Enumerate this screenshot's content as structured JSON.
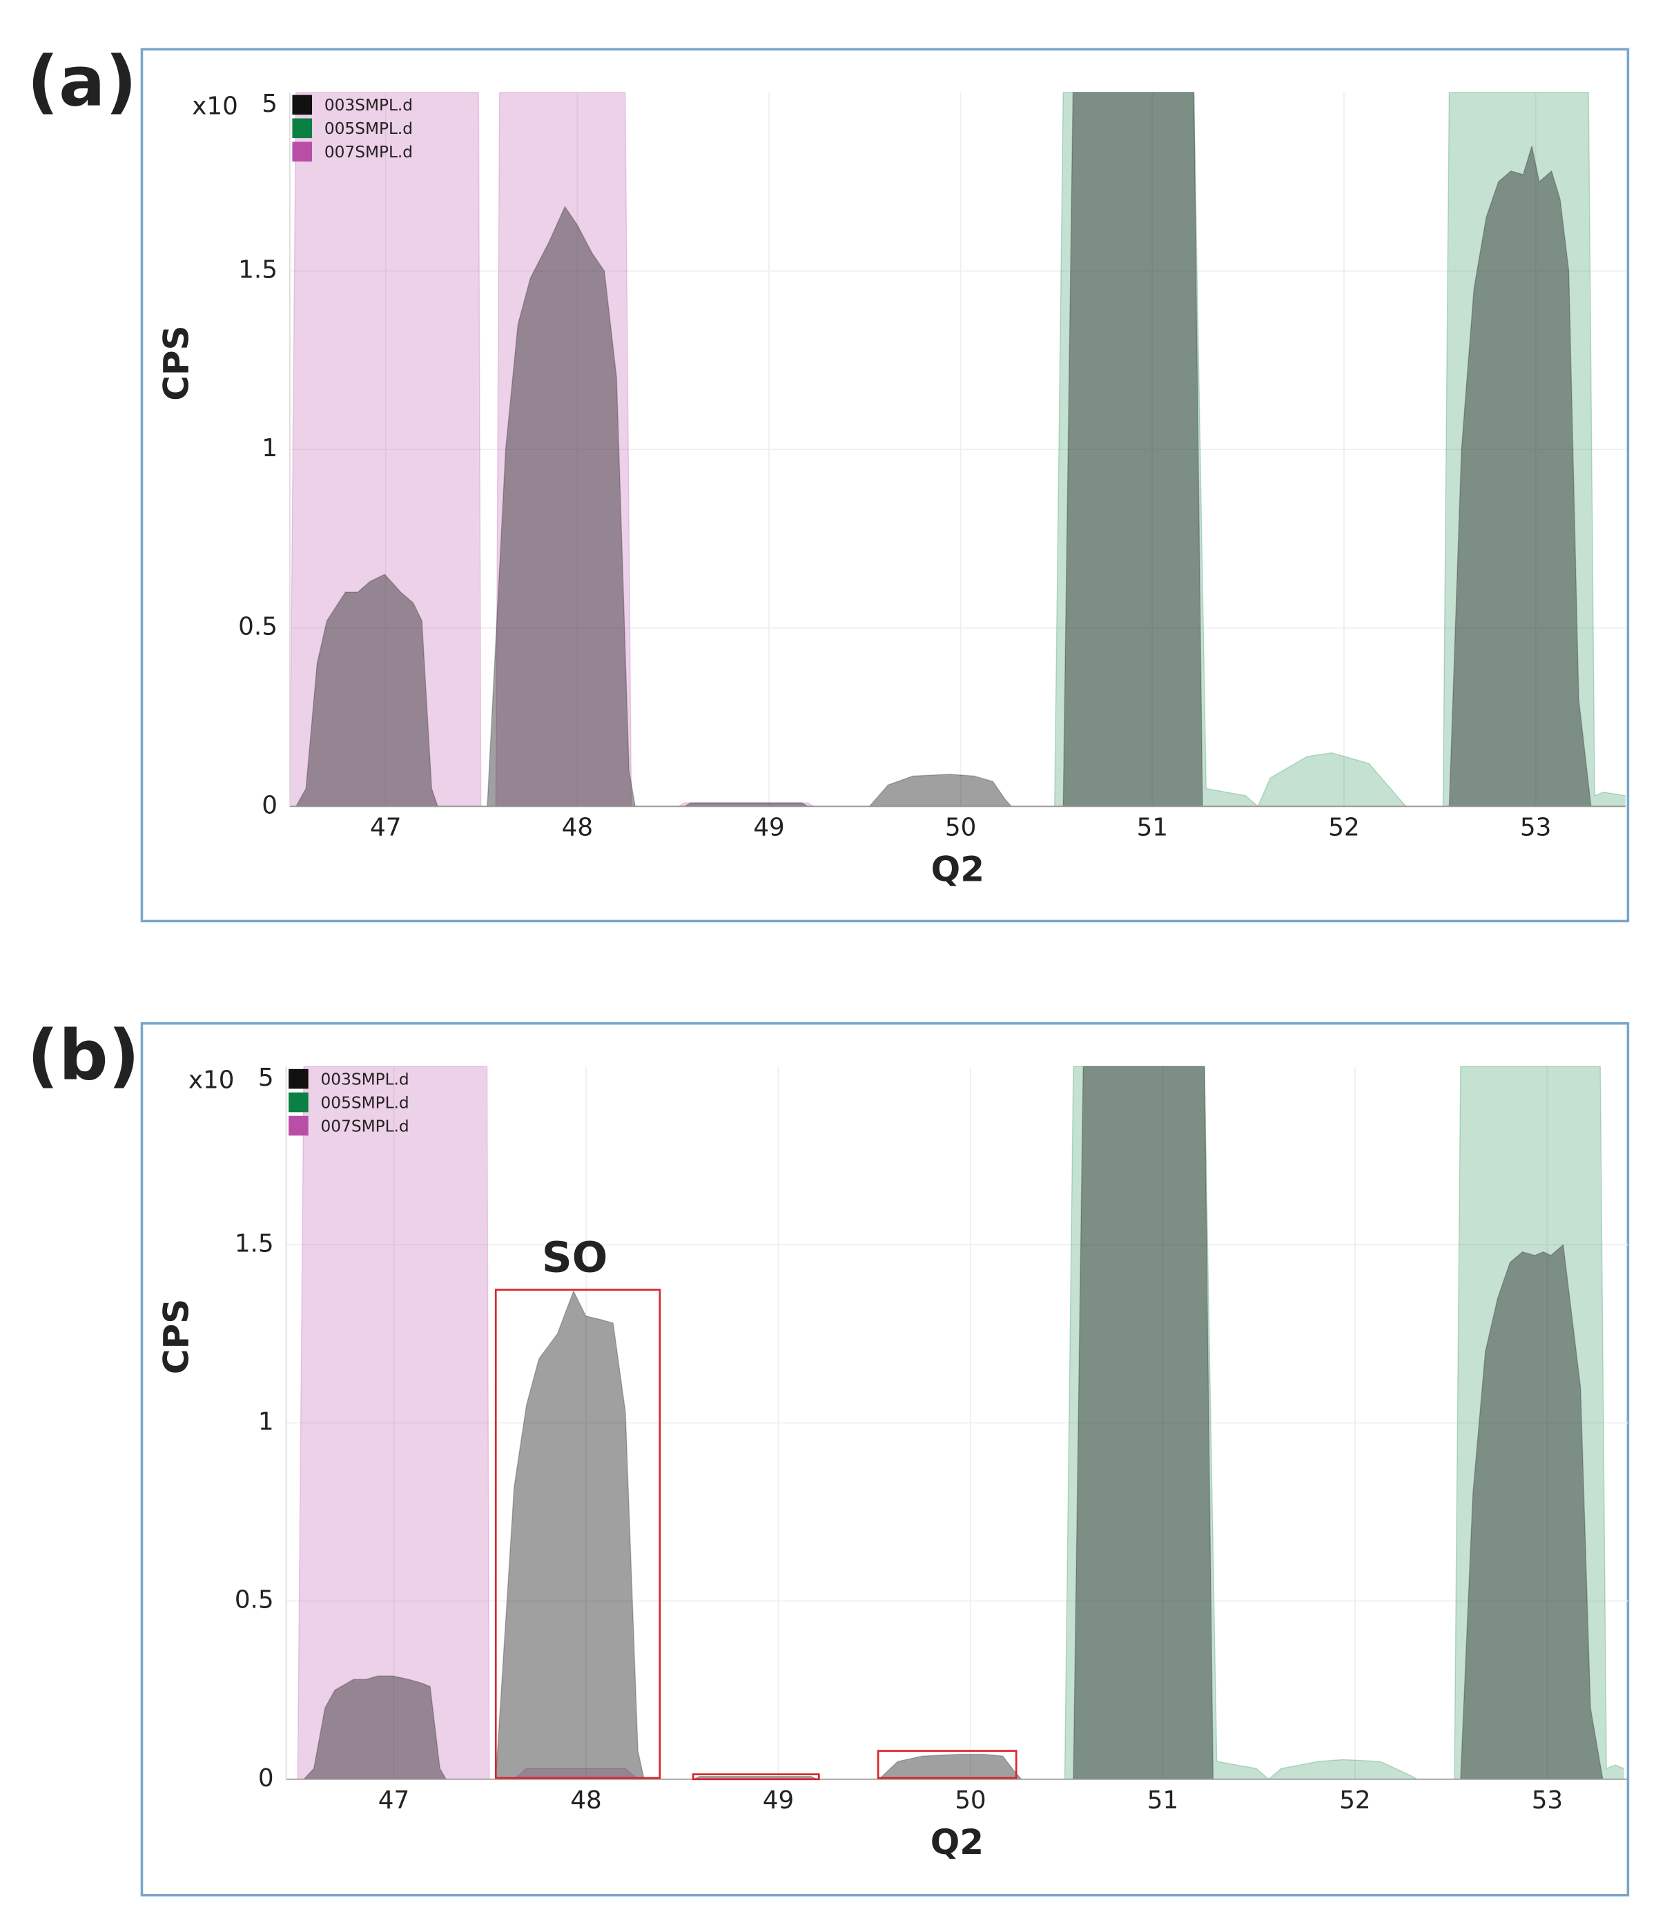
{
  "chart_data": [
    {
      "type": "area",
      "panel_label": "(a)",
      "x_label": "Q2",
      "y_label": "CPS",
      "y_multiplier": "x10",
      "y_exponent": "5",
      "xlim": [
        46.5,
        53.469
      ],
      "ylim": [
        0,
        2
      ],
      "xticks": [
        47,
        48,
        49,
        50,
        51,
        52,
        53
      ],
      "yticks": [
        0,
        0.5,
        1,
        1.5
      ],
      "grid": true,
      "series": [
        {
          "name": "007SMPL.d",
          "color": "#b84ea6",
          "x": [
            46.5,
            46.532,
            47.485,
            47.497,
            47.575,
            47.594,
            48.25,
            48.282,
            48.527,
            48.559,
            49.203,
            49.235,
            53.469
          ],
          "values": [
            0,
            2,
            2,
            0,
            0,
            2,
            2,
            0,
            0,
            0.01,
            0.01,
            0,
            0
          ]
        },
        {
          "name": "005SMPL.d",
          "color": "#0b8043",
          "x": [
            46.5,
            50.49,
            50.535,
            51.217,
            51.281,
            51.487,
            51.551,
            51.616,
            51.809,
            51.937,
            52.131,
            52.291,
            52.324,
            52.517,
            52.549,
            53.276,
            53.308,
            53.353,
            53.469
          ],
          "values": [
            0,
            0,
            2,
            2,
            0.05,
            0.03,
            0,
            0.08,
            0.14,
            0.15,
            0.12,
            0.02,
            0,
            0,
            2,
            2,
            0.03,
            0.04,
            0.03
          ]
        },
        {
          "name": "003SMPL.d",
          "color": "#111111",
          "x": [
            46.5,
            46.532,
            46.584,
            46.642,
            46.693,
            46.79,
            46.854,
            46.918,
            46.995,
            47.079,
            47.144,
            47.189,
            47.24,
            47.272,
            47.53,
            47.626,
            47.69,
            47.755,
            47.851,
            47.935,
            47.999,
            48.077,
            48.141,
            48.205,
            48.27,
            48.302,
            48.559,
            48.591,
            49.171,
            49.203,
            49.524,
            49.621,
            49.75,
            49.943,
            50.071,
            50.168,
            50.232,
            50.265,
            50.535,
            50.586,
            51.217,
            51.262,
            52.549,
            52.613,
            52.678,
            52.742,
            52.806,
            52.871,
            52.935,
            52.98,
            53.019,
            53.083,
            53.128,
            53.173,
            53.225,
            53.289,
            53.469
          ],
          "values": [
            0,
            0,
            0.05,
            0.4,
            0.52,
            0.6,
            0.6,
            0.63,
            0.65,
            0.6,
            0.57,
            0.52,
            0.05,
            0,
            0,
            1.0,
            1.35,
            1.48,
            1.58,
            1.68,
            1.63,
            1.55,
            1.5,
            1.2,
            0.1,
            0,
            0,
            0.01,
            0.01,
            0,
            0,
            0.06,
            0.085,
            0.09,
            0.085,
            0.07,
            0.02,
            0,
            0,
            2,
            2,
            0,
            0,
            1.0,
            1.45,
            1.65,
            1.75,
            1.78,
            1.77,
            1.85,
            1.75,
            1.78,
            1.7,
            1.5,
            0.3,
            0,
            0
          ]
        }
      ]
    },
    {
      "type": "area",
      "panel_label": "(b)",
      "x_label": "Q2",
      "y_label": "CPS",
      "y_multiplier": "x10",
      "y_exponent": "5",
      "xlim": [
        46.44,
        53.42
      ],
      "ylim": [
        0,
        2
      ],
      "xticks": [
        47,
        48,
        49,
        50,
        51,
        52,
        53
      ],
      "yticks": [
        0,
        0.5,
        1,
        1.5
      ],
      "grid": true,
      "annotations": [
        {
          "text": "SO"
        }
      ],
      "series": [
        {
          "name": "007SMPL.d",
          "color": "#b84ea6",
          "x": [
            46.5,
            46.532,
            47.485,
            47.497,
            47.626,
            47.69,
            48.205,
            48.27,
            53.4
          ],
          "values": [
            0,
            2,
            2,
            0,
            0,
            0.03,
            0.03,
            0,
            0
          ]
        },
        {
          "name": "005SMPL.d",
          "color": "#0b8043",
          "x": [
            46.5,
            50.49,
            50.535,
            51.217,
            51.281,
            51.487,
            51.551,
            51.616,
            51.809,
            51.937,
            52.131,
            52.291,
            52.324,
            52.517,
            52.549,
            53.276,
            53.308,
            53.353,
            53.4
          ],
          "values": [
            0,
            0,
            2,
            2,
            0.05,
            0.03,
            0,
            0.03,
            0.05,
            0.055,
            0.05,
            0.01,
            0,
            0,
            2,
            2,
            0.03,
            0.04,
            0.03
          ]
        },
        {
          "name": "003SMPL.d",
          "color": "#111111",
          "x": [
            46.5,
            46.532,
            46.584,
            46.642,
            46.693,
            46.79,
            46.854,
            46.918,
            46.995,
            47.079,
            47.144,
            47.189,
            47.24,
            47.272,
            47.53,
            47.626,
            47.69,
            47.755,
            47.851,
            47.935,
            47.999,
            48.077,
            48.141,
            48.205,
            48.27,
            48.302,
            48.559,
            48.591,
            49.171,
            49.203,
            49.524,
            49.621,
            49.75,
            49.943,
            50.071,
            50.168,
            50.232,
            50.265,
            50.535,
            50.586,
            51.217,
            51.262,
            52.549,
            52.613,
            52.678,
            52.742,
            52.806,
            52.871,
            52.935,
            52.98,
            53.019,
            53.083,
            53.128,
            53.173,
            53.225,
            53.289,
            53.4
          ],
          "values": [
            0,
            0,
            0.03,
            0.2,
            0.25,
            0.28,
            0.28,
            0.29,
            0.29,
            0.28,
            0.27,
            0.26,
            0.03,
            0,
            0,
            0.82,
            1.05,
            1.18,
            1.25,
            1.37,
            1.3,
            1.29,
            1.28,
            1.03,
            0.08,
            0,
            0,
            0.008,
            0.008,
            0,
            0,
            0.05,
            0.065,
            0.07,
            0.07,
            0.065,
            0.02,
            0,
            0,
            2,
            2,
            0,
            0,
            0.8,
            1.2,
            1.35,
            1.45,
            1.48,
            1.47,
            1.48,
            1.47,
            1.5,
            1.3,
            1.1,
            0.2,
            0,
            0
          ]
        }
      ]
    }
  ]
}
